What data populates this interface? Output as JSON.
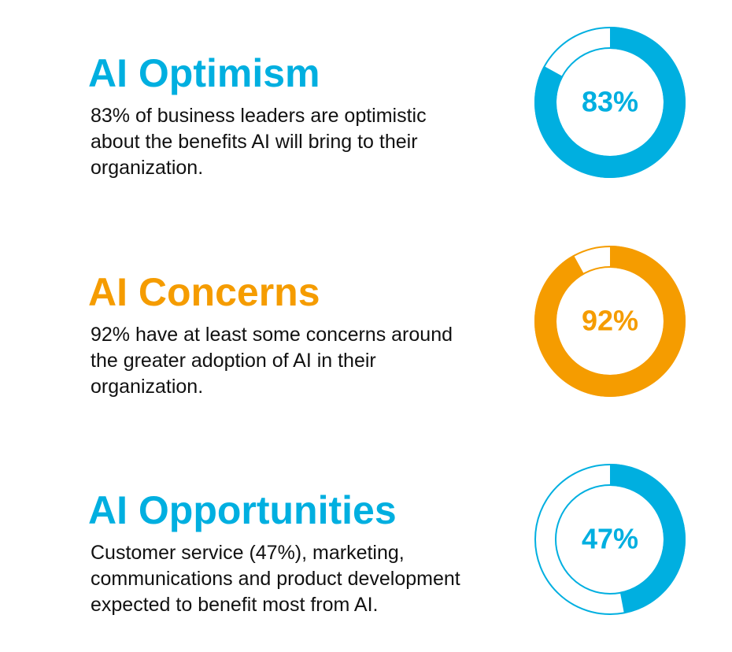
{
  "chart_data": [
    {
      "type": "donut",
      "title": "AI Optimism",
      "description": [
        "83% of business leaders are optimistic",
        "about the benefits AI will bring to their",
        "organization."
      ],
      "values": [
        83
      ],
      "value_labels": [
        "83%"
      ],
      "ylim": [
        0,
        100
      ],
      "color": "#00afe0"
    },
    {
      "type": "donut",
      "title": "AI Concerns",
      "description": [
        "92% have at least some concerns around",
        "the greater adoption of AI in their",
        "organization."
      ],
      "values": [
        92
      ],
      "value_labels": [
        "92%"
      ],
      "ylim": [
        0,
        100
      ],
      "color": "#f59c00"
    },
    {
      "type": "donut",
      "title": "AI Opportunities",
      "description": [
        "Customer service (47%), marketing,",
        "communications and product development",
        "expected to benefit most from AI."
      ],
      "values": [
        47
      ],
      "value_labels": [
        "47%"
      ],
      "ylim": [
        0,
        100
      ],
      "color": "#00afe0"
    }
  ]
}
